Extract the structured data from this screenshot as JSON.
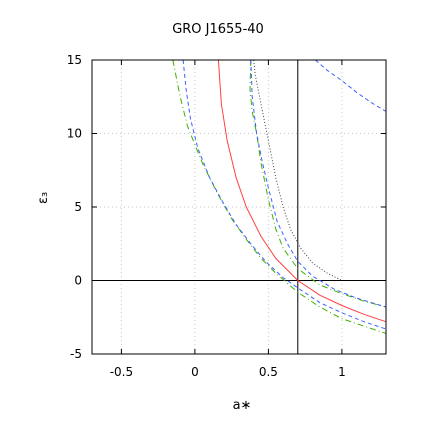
{
  "chart_data": {
    "type": "line",
    "title": "GRO J1655-40",
    "xlabel": "a∗",
    "ylabel": "ε₃",
    "xlim": [
      -0.7,
      1.3
    ],
    "ylim": [
      -5,
      15
    ],
    "xticks": [
      -0.5,
      0,
      0.5,
      1
    ],
    "xtick_labels": [
      "-0.5",
      "0",
      "0.5",
      "1"
    ],
    "yticks": [
      -5,
      0,
      5,
      10,
      15
    ],
    "ytick_labels": [
      "-5",
      "0",
      "5",
      "10",
      "15"
    ],
    "grid": true,
    "reference_lines": {
      "vertical_x": 0.7,
      "horizontal_y": 0
    },
    "series": [
      {
        "color": "#ff4040",
        "style": "solid",
        "points": [
          [
            0.16,
            15
          ],
          [
            0.18,
            12
          ],
          [
            0.22,
            9.5
          ],
          [
            0.28,
            7
          ],
          [
            0.35,
            5
          ],
          [
            0.45,
            3
          ],
          [
            0.55,
            1.5
          ],
          [
            0.7,
            0
          ],
          [
            0.85,
            -1
          ],
          [
            1.0,
            -1.7
          ],
          [
            1.15,
            -2.3
          ],
          [
            1.3,
            -2.8
          ]
        ]
      },
      {
        "color": "#40b000",
        "style": "dashdot",
        "points": [
          [
            -0.15,
            15
          ],
          [
            -0.1,
            12.5
          ],
          [
            -0.05,
            10.5
          ],
          [
            0.05,
            8
          ],
          [
            0.15,
            6
          ],
          [
            0.25,
            4.2
          ],
          [
            0.35,
            2.8
          ],
          [
            0.45,
            1.5
          ],
          [
            0.55,
            0.5
          ],
          [
            0.7,
            -0.8
          ],
          [
            0.85,
            -1.8
          ],
          [
            1.0,
            -2.6
          ],
          [
            1.15,
            -3.1
          ],
          [
            1.3,
            -3.6
          ]
        ]
      },
      {
        "color": "#40b000",
        "style": "dashdot",
        "points": [
          [
            0.38,
            15
          ],
          [
            0.375,
            13
          ],
          [
            0.39,
            11.5
          ],
          [
            0.42,
            10
          ],
          [
            0.45,
            8
          ],
          [
            0.5,
            5.5
          ],
          [
            0.55,
            3.5
          ],
          [
            0.6,
            2.2
          ],
          [
            0.7,
            0.8
          ],
          [
            0.85,
            -0.3
          ],
          [
            1.0,
            -0.9
          ],
          [
            1.15,
            -1.4
          ],
          [
            1.3,
            -1.8
          ]
        ]
      },
      {
        "color": "#4060ff",
        "style": "dashed",
        "points": [
          [
            -0.08,
            15
          ],
          [
            -0.06,
            13
          ],
          [
            -0.03,
            11
          ],
          [
            0.02,
            9
          ],
          [
            0.1,
            7
          ],
          [
            0.18,
            5.5
          ],
          [
            0.28,
            3.8
          ],
          [
            0.38,
            2.5
          ],
          [
            0.48,
            1.3
          ],
          [
            0.6,
            0.2
          ],
          [
            0.7,
            -0.5
          ],
          [
            0.85,
            -1.5
          ],
          [
            1.0,
            -2.2
          ],
          [
            1.15,
            -2.8
          ],
          [
            1.3,
            -3.3
          ]
        ]
      },
      {
        "color": "#4060ff",
        "style": "dashed",
        "points": [
          [
            0.38,
            15
          ],
          [
            0.39,
            12.5
          ],
          [
            0.42,
            10
          ],
          [
            0.46,
            8
          ],
          [
            0.5,
            6.3
          ],
          [
            0.56,
            4
          ],
          [
            0.63,
            2.5
          ],
          [
            0.7,
            1.3
          ],
          [
            0.8,
            0.3
          ],
          [
            0.95,
            -0.6
          ],
          [
            1.1,
            -1.2
          ],
          [
            1.3,
            -1.8
          ]
        ]
      },
      {
        "color": "#4060ff",
        "style": "dashed",
        "points": [
          [
            0.82,
            15
          ],
          [
            0.9,
            14.3
          ],
          [
            1.0,
            13.6
          ],
          [
            1.1,
            12.8
          ],
          [
            1.2,
            12.1
          ],
          [
            1.3,
            11.5
          ]
        ]
      },
      {
        "color": "#404040",
        "style": "dotted",
        "points": [
          [
            0.4,
            15
          ],
          [
            0.41,
            14
          ],
          [
            0.45,
            12
          ],
          [
            0.5,
            9.5
          ],
          [
            0.55,
            7
          ],
          [
            0.6,
            5
          ],
          [
            0.65,
            3.5
          ],
          [
            0.72,
            2.2
          ],
          [
            0.8,
            1.2
          ],
          [
            0.9,
            0.5
          ],
          [
            1.0,
            0
          ]
        ]
      }
    ]
  }
}
